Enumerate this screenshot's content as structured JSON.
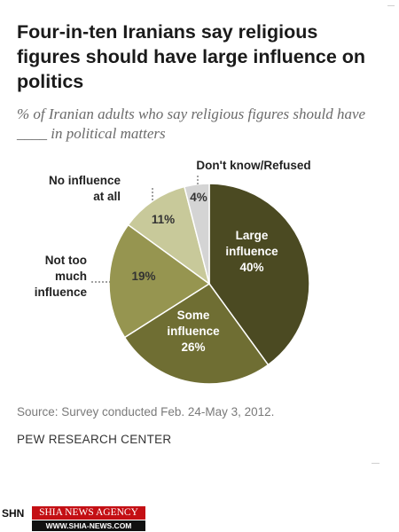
{
  "title": "Four-in-ten Iranians say religious figures should have large influence on politics",
  "subtitle": "% of Iranian adults who say religious figures should have ____ in political matters",
  "source": "Source: Survey conducted Feb. 24-May 3, 2012.",
  "organization": "PEW RESEARCH CENTER",
  "banner": {
    "abbr": "SHN",
    "name": "SHIA NEWS AGENCY",
    "url": "WWW.SHIA-NEWS.COM"
  },
  "chart_data": {
    "type": "pie",
    "title": "Four-in-ten Iranians say religious figures should have large influence on politics",
    "subtitle": "% of Iranian adults who say religious figures should have ____ in political matters",
    "start": "12 o'clock, clockwise",
    "slices": [
      {
        "label": "Large influence",
        "label_lines": [
          "Large",
          "influence"
        ],
        "value": 40,
        "value_label": "40%",
        "color": "#4b4a22",
        "text_color": "#ffffff",
        "label_inside": true
      },
      {
        "label": "Some influence",
        "label_lines": [
          "Some",
          "influence"
        ],
        "value": 26,
        "value_label": "26%",
        "color": "#6f6e33",
        "text_color": "#ffffff",
        "label_inside": true
      },
      {
        "label": "Not too much influence",
        "label_lines": [
          "Not too",
          "much",
          "influence"
        ],
        "value": 19,
        "value_label": "19%",
        "color": "#969550",
        "text_color": "#333333",
        "label_inside": false
      },
      {
        "label": "No influence at all",
        "label_lines": [
          "No influence",
          "at all"
        ],
        "value": 11,
        "value_label": "11%",
        "color": "#c8c99a",
        "text_color": "#333333",
        "label_inside": false
      },
      {
        "label": "Don't know/Refused",
        "label_lines": [
          "Don't know/Refused"
        ],
        "value": 4,
        "value_label": "4%",
        "color": "#d4d4d4",
        "text_color": "#333333",
        "label_inside": false
      }
    ]
  }
}
